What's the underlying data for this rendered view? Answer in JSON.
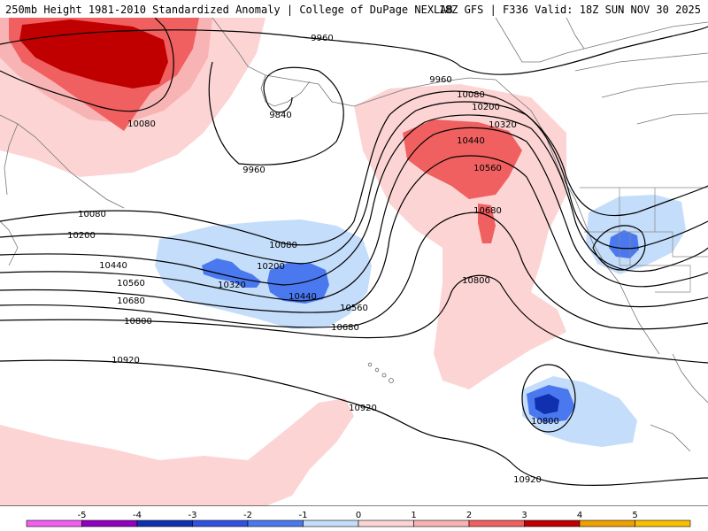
{
  "header": {
    "title_left": "250mb Height 1981-2010 Standardized Anomaly | College of DuPage NEXLAB",
    "title_right": "18Z GFS | F336 Valid: 18Z SUN NOV 30 2025"
  },
  "map": {
    "product": "250mb Height Standardized Anomaly",
    "contour_labels": [
      {
        "id": "lbl-9960-a",
        "text": "9960"
      },
      {
        "id": "lbl-9960-b",
        "text": "9960"
      },
      {
        "id": "lbl-9960-c",
        "text": "9960"
      },
      {
        "id": "lbl-9840",
        "text": "9840"
      },
      {
        "id": "lbl-10080-a",
        "text": "10080"
      },
      {
        "id": "lbl-10080-b",
        "text": "10080"
      },
      {
        "id": "lbl-10080-c",
        "text": "10080"
      },
      {
        "id": "lbl-10080-d",
        "text": "10080"
      },
      {
        "id": "lbl-10200-a",
        "text": "10200"
      },
      {
        "id": "lbl-10200-b",
        "text": "10200"
      },
      {
        "id": "lbl-10200-c",
        "text": "10200"
      },
      {
        "id": "lbl-10320-a",
        "text": "10320"
      },
      {
        "id": "lbl-10320-b",
        "text": "10320"
      },
      {
        "id": "lbl-10440-a",
        "text": "10440"
      },
      {
        "id": "lbl-10440-b",
        "text": "10440"
      },
      {
        "id": "lbl-10440-c",
        "text": "10440"
      },
      {
        "id": "lbl-10560-a",
        "text": "10560"
      },
      {
        "id": "lbl-10560-b",
        "text": "10560"
      },
      {
        "id": "lbl-10560-c",
        "text": "10560"
      },
      {
        "id": "lbl-10680-a",
        "text": "10680"
      },
      {
        "id": "lbl-10680-b",
        "text": "10680"
      },
      {
        "id": "lbl-10680-c",
        "text": "10680"
      },
      {
        "id": "lbl-10800-a",
        "text": "10800"
      },
      {
        "id": "lbl-10800-b",
        "text": "10800"
      },
      {
        "id": "lbl-10800-c",
        "text": "10800"
      },
      {
        "id": "lbl-10920-a",
        "text": "10920"
      },
      {
        "id": "lbl-10920-b",
        "text": "10920"
      },
      {
        "id": "lbl-10920-c",
        "text": "10920"
      }
    ]
  },
  "colorbar": {
    "labels": [
      "-5",
      "-4",
      "-3",
      "-2",
      "-1",
      "0",
      "1",
      "2",
      "3",
      "4",
      "5"
    ],
    "colors": {
      "neg5": "#f060f0",
      "neg4": "#9000c0",
      "neg3": "#1030b0",
      "neg2": "#3050e0",
      "neg1": "#4a78ee",
      "neg0": "#c4ddfa",
      "pos0": "#fcd4d4",
      "pos1": "#f8b4b4",
      "pos2": "#f06060",
      "pos3": "#c00000",
      "pos4": "#f0a000",
      "pos5": "#f8c000"
    }
  }
}
